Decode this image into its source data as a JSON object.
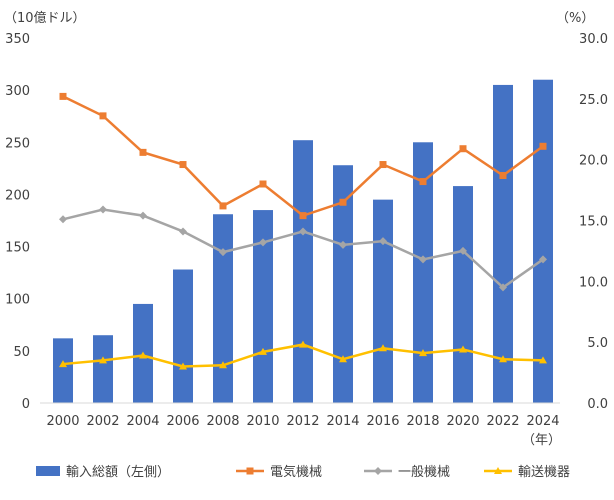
{
  "chart_data": {
    "type": "bar+line",
    "left_axis_unit": "（10億ドル）",
    "right_axis_unit": "（%）",
    "x_unit": "（年）",
    "categories": [
      "2000",
      "2002",
      "2004",
      "2006",
      "2008",
      "2010",
      "2012",
      "2014",
      "2016",
      "2018",
      "2020",
      "2022",
      "2024"
    ],
    "left_ylim": [
      0,
      350
    ],
    "left_ticks": [
      "0",
      "50",
      "100",
      "150",
      "200",
      "250",
      "300",
      "350"
    ],
    "right_ylim": [
      0,
      30
    ],
    "right_ticks": [
      "0.0",
      "5.0",
      "10.0",
      "15.0",
      "20.0",
      "25.0",
      "30.0"
    ],
    "grid": false,
    "legend_position": "bottom",
    "bars": {
      "name": "輸入総額（左側）",
      "color": "#4472C4",
      "values": [
        62,
        65,
        95,
        128,
        181,
        185,
        252,
        228,
        195,
        250,
        208,
        305,
        310
      ]
    },
    "lines": [
      {
        "name": "電気機械",
        "color": "#ED7D31",
        "marker": "square",
        "values": [
          25.2,
          23.6,
          20.6,
          19.6,
          16.2,
          18.0,
          15.4,
          16.5,
          19.6,
          18.2,
          20.9,
          18.7,
          21.1
        ]
      },
      {
        "name": "一般機械",
        "color": "#A5A5A5",
        "marker": "diamond",
        "values": [
          15.1,
          15.9,
          15.4,
          14.1,
          12.4,
          13.2,
          14.1,
          13.0,
          13.3,
          11.8,
          12.5,
          9.5,
          11.8
        ]
      },
      {
        "name": "輸送機器",
        "color": "#FFC000",
        "marker": "triangle",
        "values": [
          3.2,
          3.5,
          3.9,
          3.0,
          3.1,
          4.2,
          4.8,
          3.6,
          4.5,
          4.1,
          4.4,
          3.6,
          3.5
        ]
      }
    ]
  }
}
